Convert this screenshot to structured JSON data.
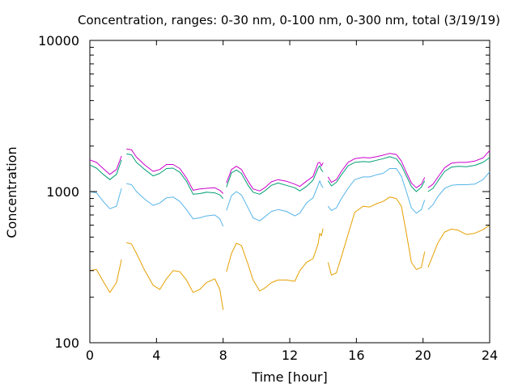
{
  "chart_data": {
    "type": "line",
    "title": "Concentration, ranges: 0-30 nm, 0-100 nm, 0-300 nm, total (3/19/19)",
    "xlabel": "Time [hour]",
    "ylabel": "Concentration",
    "xlim": [
      0,
      24
    ],
    "ylim": [
      100,
      10000
    ],
    "yscale": "log",
    "grid": false,
    "legend": "none",
    "x_ticks": [
      0,
      4,
      8,
      12,
      16,
      20,
      24
    ],
    "x_tick_labels": [
      "0",
      "4",
      "8",
      "12",
      "16",
      "20",
      "24"
    ],
    "y_ticks": [
      100,
      1000,
      10000
    ],
    "y_tick_labels": [
      "100",
      "1000",
      "10000"
    ],
    "series": [
      {
        "color": "#e69f00",
        "segments": [
          [
            [
              0,
              300
            ],
            [
              0.4,
              305
            ],
            [
              0.8,
              255
            ],
            [
              1.2,
              215
            ],
            [
              1.6,
              250
            ],
            [
              1.9,
              355
            ]
          ],
          [
            [
              2.2,
              460
            ],
            [
              2.5,
              450
            ],
            [
              2.8,
              390
            ],
            [
              3.3,
              300
            ],
            [
              3.8,
              240
            ],
            [
              4.2,
              225
            ],
            [
              4.6,
              265
            ],
            [
              5.0,
              300
            ],
            [
              5.4,
              295
            ],
            [
              5.8,
              260
            ],
            [
              6.2,
              215
            ],
            [
              6.6,
              225
            ],
            [
              7.0,
              250
            ],
            [
              7.5,
              265
            ],
            [
              7.8,
              225
            ],
            [
              8.0,
              165
            ]
          ],
          [
            [
              8.2,
              295
            ],
            [
              8.5,
              390
            ],
            [
              8.8,
              455
            ],
            [
              9.1,
              440
            ],
            [
              9.5,
              330
            ],
            [
              9.8,
              260
            ],
            [
              10.2,
              220
            ],
            [
              10.5,
              230
            ],
            [
              10.9,
              250
            ],
            [
              11.3,
              260
            ],
            [
              11.8,
              260
            ],
            [
              12.3,
              255
            ],
            [
              12.6,
              300
            ],
            [
              13.0,
              340
            ],
            [
              13.4,
              360
            ],
            [
              13.7,
              450
            ],
            [
              13.8,
              530
            ],
            [
              13.9,
              510
            ],
            [
              14.0,
              570
            ]
          ],
          [
            [
              14.3,
              340
            ],
            [
              14.5,
              280
            ],
            [
              14.8,
              290
            ],
            [
              15.1,
              370
            ],
            [
              15.5,
              520
            ],
            [
              15.9,
              730
            ],
            [
              16.4,
              800
            ],
            [
              16.8,
              790
            ],
            [
              17.2,
              830
            ],
            [
              17.6,
              860
            ],
            [
              18.0,
              920
            ],
            [
              18.4,
              900
            ],
            [
              18.7,
              800
            ],
            [
              19.0,
              530
            ],
            [
              19.3,
              340
            ],
            [
              19.6,
              305
            ],
            [
              19.9,
              315
            ],
            [
              20.1,
              400
            ]
          ],
          [
            [
              20.3,
              315
            ],
            [
              20.6,
              380
            ],
            [
              20.9,
              460
            ],
            [
              21.3,
              540
            ],
            [
              21.7,
              565
            ],
            [
              22.1,
              555
            ],
            [
              22.6,
              520
            ],
            [
              23.1,
              530
            ],
            [
              23.6,
              560
            ],
            [
              24.0,
              600
            ]
          ]
        ]
      },
      {
        "color": "#56b4e9",
        "segments": [
          [
            [
              0,
              1000
            ],
            [
              0.4,
              980
            ],
            [
              0.8,
              860
            ],
            [
              1.2,
              770
            ],
            [
              1.6,
              800
            ],
            [
              1.9,
              1050
            ]
          ],
          [
            [
              2.2,
              1130
            ],
            [
              2.5,
              1110
            ],
            [
              2.8,
              1000
            ],
            [
              3.3,
              890
            ],
            [
              3.8,
              810
            ],
            [
              4.2,
              840
            ],
            [
              4.6,
              910
            ],
            [
              5.0,
              920
            ],
            [
              5.4,
              860
            ],
            [
              5.8,
              760
            ],
            [
              6.2,
              660
            ],
            [
              6.6,
              670
            ],
            [
              7.0,
              690
            ],
            [
              7.5,
              700
            ],
            [
              7.8,
              660
            ],
            [
              8.0,
              590
            ]
          ],
          [
            [
              8.2,
              750
            ],
            [
              8.5,
              940
            ],
            [
              8.8,
              1000
            ],
            [
              9.1,
              950
            ],
            [
              9.5,
              780
            ],
            [
              9.8,
              670
            ],
            [
              10.2,
              640
            ],
            [
              10.5,
              680
            ],
            [
              10.9,
              740
            ],
            [
              11.3,
              760
            ],
            [
              11.8,
              740
            ],
            [
              12.3,
              690
            ],
            [
              12.6,
              720
            ],
            [
              13.0,
              840
            ],
            [
              13.4,
              910
            ],
            [
              13.7,
              1100
            ],
            [
              13.8,
              1180
            ],
            [
              13.9,
              1100
            ],
            [
              14.0,
              1060
            ]
          ],
          [
            [
              14.3,
              800
            ],
            [
              14.5,
              750
            ],
            [
              14.8,
              780
            ],
            [
              15.1,
              900
            ],
            [
              15.5,
              1050
            ],
            [
              15.9,
              1200
            ],
            [
              16.4,
              1250
            ],
            [
              16.8,
              1250
            ],
            [
              17.2,
              1290
            ],
            [
              17.6,
              1320
            ],
            [
              18.0,
              1420
            ],
            [
              18.4,
              1420
            ],
            [
              18.7,
              1260
            ],
            [
              19.0,
              1000
            ],
            [
              19.3,
              780
            ],
            [
              19.6,
              720
            ],
            [
              19.9,
              760
            ],
            [
              20.1,
              880
            ]
          ],
          [
            [
              20.3,
              760
            ],
            [
              20.6,
              820
            ],
            [
              20.9,
              930
            ],
            [
              21.3,
              1050
            ],
            [
              21.7,
              1100
            ],
            [
              22.1,
              1110
            ],
            [
              22.6,
              1110
            ],
            [
              23.1,
              1120
            ],
            [
              23.6,
              1200
            ],
            [
              24.0,
              1350
            ]
          ]
        ]
      },
      {
        "color": "#009e73",
        "segments": [
          [
            [
              0,
              1500
            ],
            [
              0.4,
              1430
            ],
            [
              0.8,
              1300
            ],
            [
              1.2,
              1200
            ],
            [
              1.6,
              1300
            ],
            [
              1.9,
              1620
            ]
          ],
          [
            [
              2.2,
              1780
            ],
            [
              2.5,
              1750
            ],
            [
              2.8,
              1560
            ],
            [
              3.3,
              1400
            ],
            [
              3.8,
              1270
            ],
            [
              4.2,
              1320
            ],
            [
              4.6,
              1420
            ],
            [
              5.0,
              1430
            ],
            [
              5.4,
              1340
            ],
            [
              5.8,
              1170
            ],
            [
              6.2,
              960
            ],
            [
              6.6,
              970
            ],
            [
              7.0,
              990
            ],
            [
              7.5,
              980
            ],
            [
              7.8,
              950
            ],
            [
              8.0,
              900
            ]
          ],
          [
            [
              8.2,
              1070
            ],
            [
              8.5,
              1330
            ],
            [
              8.8,
              1390
            ],
            [
              9.1,
              1320
            ],
            [
              9.5,
              1100
            ],
            [
              9.8,
              990
            ],
            [
              10.2,
              960
            ],
            [
              10.5,
              1010
            ],
            [
              10.9,
              1100
            ],
            [
              11.3,
              1140
            ],
            [
              11.8,
              1100
            ],
            [
              12.3,
              1060
            ],
            [
              12.6,
              1010
            ],
            [
              13.0,
              1080
            ],
            [
              13.4,
              1190
            ],
            [
              13.7,
              1430
            ],
            [
              13.8,
              1480
            ],
            [
              13.9,
              1390
            ],
            [
              14.0,
              1350
            ]
          ],
          [
            [
              14.3,
              1180
            ],
            [
              14.5,
              1090
            ],
            [
              14.8,
              1150
            ],
            [
              15.1,
              1290
            ],
            [
              15.5,
              1480
            ],
            [
              15.9,
              1560
            ],
            [
              16.4,
              1580
            ],
            [
              16.8,
              1570
            ],
            [
              17.2,
              1610
            ],
            [
              17.6,
              1650
            ],
            [
              18.0,
              1700
            ],
            [
              18.4,
              1650
            ],
            [
              18.7,
              1490
            ],
            [
              19.0,
              1270
            ],
            [
              19.3,
              1080
            ],
            [
              19.6,
              1000
            ],
            [
              19.9,
              1070
            ],
            [
              20.1,
              1180
            ]
          ],
          [
            [
              20.3,
              1000
            ],
            [
              20.6,
              1050
            ],
            [
              20.9,
              1180
            ],
            [
              21.3,
              1360
            ],
            [
              21.7,
              1450
            ],
            [
              22.1,
              1470
            ],
            [
              22.6,
              1460
            ],
            [
              23.1,
              1490
            ],
            [
              23.6,
              1560
            ],
            [
              24.0,
              1680
            ]
          ]
        ]
      },
      {
        "color": "#cc00cc",
        "segments": [
          [
            [
              0,
              1620
            ],
            [
              0.4,
              1560
            ],
            [
              0.8,
              1420
            ],
            [
              1.2,
              1300
            ],
            [
              1.6,
              1400
            ],
            [
              1.9,
              1720
            ]
          ],
          [
            [
              2.2,
              1910
            ],
            [
              2.5,
              1890
            ],
            [
              2.8,
              1690
            ],
            [
              3.3,
              1500
            ],
            [
              3.8,
              1360
            ],
            [
              4.2,
              1400
            ],
            [
              4.6,
              1510
            ],
            [
              5.0,
              1510
            ],
            [
              5.4,
              1420
            ],
            [
              5.8,
              1230
            ],
            [
              6.2,
              1020
            ],
            [
              6.6,
              1040
            ],
            [
              7.0,
              1050
            ],
            [
              7.5,
              1060
            ],
            [
              7.8,
              1020
            ],
            [
              8.0,
              970
            ]
          ],
          [
            [
              8.2,
              1140
            ],
            [
              8.5,
              1400
            ],
            [
              8.8,
              1470
            ],
            [
              9.1,
              1400
            ],
            [
              9.5,
              1170
            ],
            [
              9.8,
              1040
            ],
            [
              10.2,
              1010
            ],
            [
              10.5,
              1060
            ],
            [
              10.9,
              1160
            ],
            [
              11.3,
              1200
            ],
            [
              11.8,
              1170
            ],
            [
              12.3,
              1120
            ],
            [
              12.6,
              1080
            ],
            [
              13.0,
              1170
            ],
            [
              13.4,
              1260
            ],
            [
              13.7,
              1550
            ],
            [
              13.8,
              1560
            ],
            [
              13.9,
              1480
            ],
            [
              14.0,
              1550
            ]
          ],
          [
            [
              14.3,
              1250
            ],
            [
              14.5,
              1150
            ],
            [
              14.8,
              1200
            ],
            [
              15.1,
              1360
            ],
            [
              15.5,
              1560
            ],
            [
              15.9,
              1650
            ],
            [
              16.4,
              1680
            ],
            [
              16.8,
              1670
            ],
            [
              17.2,
              1700
            ],
            [
              17.6,
              1740
            ],
            [
              18.0,
              1790
            ],
            [
              18.4,
              1760
            ],
            [
              18.7,
              1590
            ],
            [
              19.0,
              1340
            ],
            [
              19.3,
              1140
            ],
            [
              19.6,
              1060
            ],
            [
              19.9,
              1120
            ],
            [
              20.1,
              1240
            ]
          ],
          [
            [
              20.3,
              1060
            ],
            [
              20.6,
              1120
            ],
            [
              20.9,
              1250
            ],
            [
              21.3,
              1440
            ],
            [
              21.7,
              1540
            ],
            [
              22.1,
              1560
            ],
            [
              22.6,
              1560
            ],
            [
              23.1,
              1590
            ],
            [
              23.6,
              1670
            ],
            [
              24.0,
              1870
            ]
          ]
        ]
      }
    ]
  }
}
